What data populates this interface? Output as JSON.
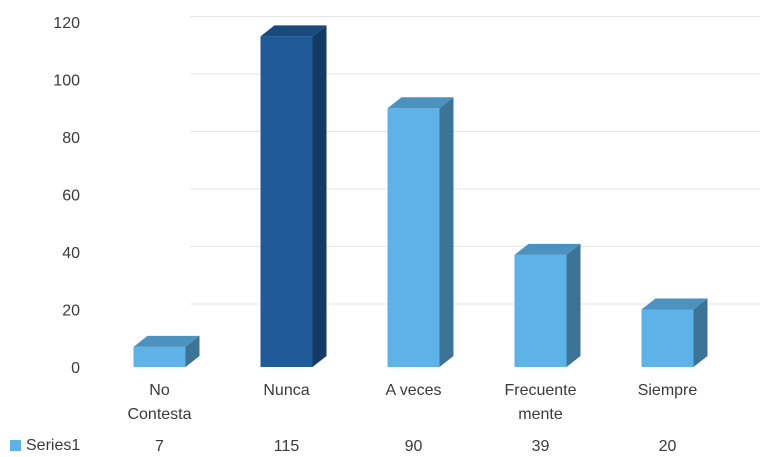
{
  "chart_data": {
    "type": "bar",
    "style": "3d-column",
    "categories": [
      [
        "No",
        "Contesta"
      ],
      [
        "Nunca"
      ],
      [
        "A veces"
      ],
      [
        "Frecuente",
        "mente"
      ],
      [
        "Siempre"
      ]
    ],
    "series": [
      {
        "name": "Series1",
        "values": [
          7,
          115,
          90,
          39,
          20
        ],
        "color": "#5db2e8",
        "highlight_index": 1,
        "highlight_color": "#1f5a99"
      }
    ],
    "ylim": [
      0,
      120
    ],
    "yticks": [
      0,
      20,
      40,
      60,
      80,
      100,
      120
    ],
    "grid": true,
    "legend": "data-table-bottom",
    "data_table": true
  },
  "legend": {
    "label": "Series1",
    "color": "#5db2e8"
  },
  "table_values": [
    "7",
    "115",
    "90",
    "39",
    "20"
  ]
}
